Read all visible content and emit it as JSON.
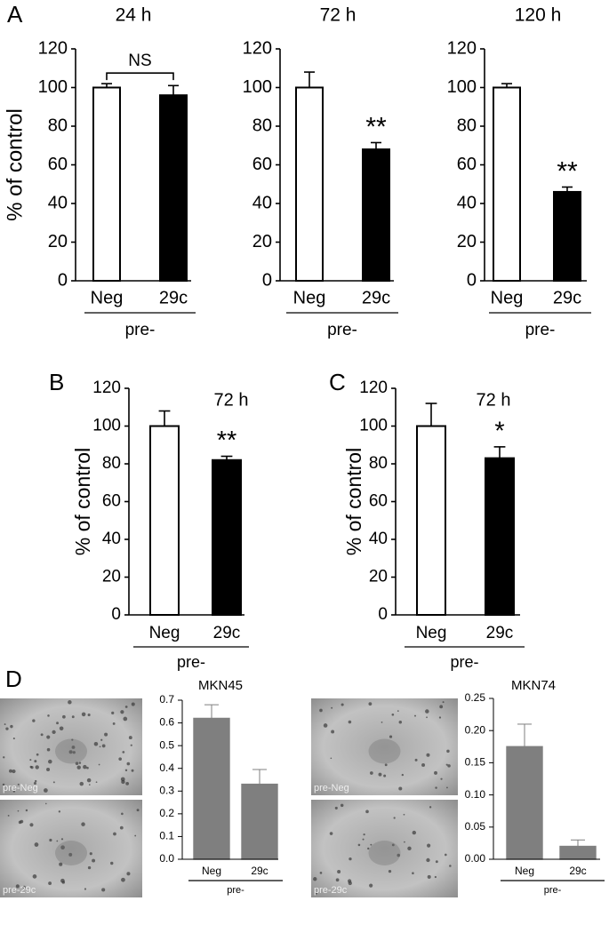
{
  "panel_labels": [
    "A",
    "B",
    "C",
    "D"
  ],
  "images": [
    {
      "label": "pre-Neg"
    },
    {
      "label": "pre-29c"
    },
    {
      "label": "pre-Neg"
    },
    {
      "label": "pre-29c"
    }
  ],
  "chart_data": [
    {
      "type": "bar",
      "title": "24 h",
      "ylabel": "% of control",
      "xlabel": "pre-",
      "categories": [
        "Neg",
        "29c"
      ],
      "values": [
        100,
        96
      ],
      "errors": [
        2,
        5
      ],
      "comparison": "NS",
      "colors": [
        "#ffffff",
        "#000000"
      ],
      "edgecolor": "#000000",
      "ylim": [
        0,
        120
      ],
      "yticks": [
        0,
        20,
        40,
        60,
        80,
        100,
        120
      ]
    },
    {
      "type": "bar",
      "title": "72 h",
      "xlabel": "pre-",
      "categories": [
        "Neg",
        "29c"
      ],
      "values": [
        100,
        68
      ],
      "errors": [
        8,
        3.5
      ],
      "significance": "**",
      "colors": [
        "#ffffff",
        "#000000"
      ],
      "edgecolor": "#000000",
      "ylim": [
        0,
        120
      ],
      "yticks": [
        0,
        20,
        40,
        60,
        80,
        100,
        120
      ]
    },
    {
      "type": "bar",
      "title": "120 h",
      "xlabel": "pre-",
      "categories": [
        "Neg",
        "29c"
      ],
      "values": [
        100,
        46
      ],
      "errors": [
        2,
        2.5
      ],
      "significance": "**",
      "colors": [
        "#ffffff",
        "#000000"
      ],
      "edgecolor": "#000000",
      "ylim": [
        0,
        120
      ],
      "yticks": [
        0,
        20,
        40,
        60,
        80,
        100,
        120
      ]
    },
    {
      "type": "bar",
      "title": "72 h",
      "ylabel": "% of control",
      "xlabel": "pre-",
      "categories": [
        "Neg",
        "29c"
      ],
      "values": [
        100,
        82
      ],
      "errors": [
        8,
        2
      ],
      "significance": "**",
      "colors": [
        "#ffffff",
        "#000000"
      ],
      "edgecolor": "#000000",
      "ylim": [
        0,
        120
      ],
      "yticks": [
        0,
        20,
        40,
        60,
        80,
        100,
        120
      ]
    },
    {
      "type": "bar",
      "title": "72 h",
      "ylabel": "% of control",
      "xlabel": "pre-",
      "categories": [
        "Neg",
        "29c"
      ],
      "values": [
        100,
        83
      ],
      "errors": [
        12,
        6
      ],
      "significance": "*",
      "colors": [
        "#ffffff",
        "#000000"
      ],
      "edgecolor": "#000000",
      "ylim": [
        0,
        120
      ],
      "yticks": [
        0,
        20,
        40,
        60,
        80,
        100,
        120
      ]
    },
    {
      "type": "bar",
      "title": "MKN45",
      "xlabel": "pre-",
      "categories": [
        "Neg",
        "29c"
      ],
      "values": [
        0.62,
        0.33
      ],
      "errors": [
        0.06,
        0.065
      ],
      "colors": [
        "#7f7f7f",
        "#7f7f7f"
      ],
      "edgecolor": "#7f7f7f",
      "ylim": [
        0,
        0.7
      ],
      "yticks": [
        {
          "value": 0,
          "label": "0.0"
        },
        0.1,
        0.2,
        0.3,
        0.4,
        0.5,
        0.6,
        0.7
      ]
    },
    {
      "type": "bar",
      "title": "MKN74",
      "xlabel": "pre-",
      "categories": [
        "Neg",
        "29c"
      ],
      "values": [
        0.175,
        0.02
      ],
      "errors": [
        0.035,
        0.01
      ],
      "colors": [
        "#7f7f7f",
        "#7f7f7f"
      ],
      "edgecolor": "#7f7f7f",
      "ylim": [
        0,
        0.25
      ],
      "yticks": [
        {
          "value": 0,
          "label": "0.00"
        },
        0.05,
        {
          "value": 0.1,
          "label": "0.10"
        },
        0.15,
        {
          "value": 0.2,
          "label": "0.20"
        },
        0.25
      ]
    }
  ]
}
